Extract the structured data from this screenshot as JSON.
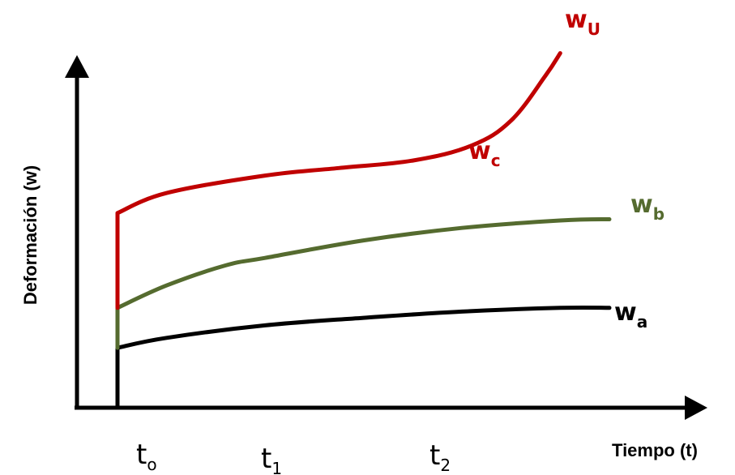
{
  "chart_data": {
    "type": "line",
    "title": "",
    "xlabel": "Tiempo (t)",
    "ylabel": "Deformación (w)",
    "x_ticks": [
      {
        "base": "t",
        "sub": "o"
      },
      {
        "base": "t",
        "sub": "1"
      },
      {
        "base": "t",
        "sub": "2"
      }
    ],
    "grid": false,
    "legend": "none",
    "axis_color": "#000000",
    "series": [
      {
        "label": {
          "base": "w",
          "sub": "a"
        },
        "color": "#000000",
        "points": [
          [
            0,
            0
          ],
          [
            0,
            0.24
          ],
          [
            0.1,
            0.28
          ],
          [
            0.3,
            0.33
          ],
          [
            0.5,
            0.36
          ],
          [
            0.7,
            0.385
          ],
          [
            0.9,
            0.4
          ],
          [
            1,
            0.4
          ]
        ]
      },
      {
        "label": {
          "base": "w",
          "sub": "b"
        },
        "color": "#556B2F",
        "points": [
          [
            0,
            0.24
          ],
          [
            0,
            0.4
          ],
          [
            0.1,
            0.49
          ],
          [
            0.22,
            0.57
          ],
          [
            0.3,
            0.6
          ],
          [
            0.5,
            0.67
          ],
          [
            0.7,
            0.72
          ],
          [
            0.9,
            0.75
          ],
          [
            1,
            0.755
          ]
        ]
      },
      {
        "label": {
          "base": "w",
          "sub": "c"
        },
        "color": "#C00000",
        "points": [
          [
            0,
            0.4
          ],
          [
            0,
            0.78
          ],
          [
            0.1,
            0.86
          ],
          [
            0.3,
            0.93
          ],
          [
            0.45,
            0.96
          ],
          [
            0.6,
            0.99
          ],
          [
            0.72,
            1.05
          ],
          [
            0.8,
            1.15
          ],
          [
            0.87,
            1.33
          ],
          [
            0.9,
            1.42
          ]
        ]
      }
    ],
    "annotations": [
      {
        "text": {
          "base": "w",
          "sub": "U"
        },
        "color": "#C00000"
      }
    ]
  }
}
